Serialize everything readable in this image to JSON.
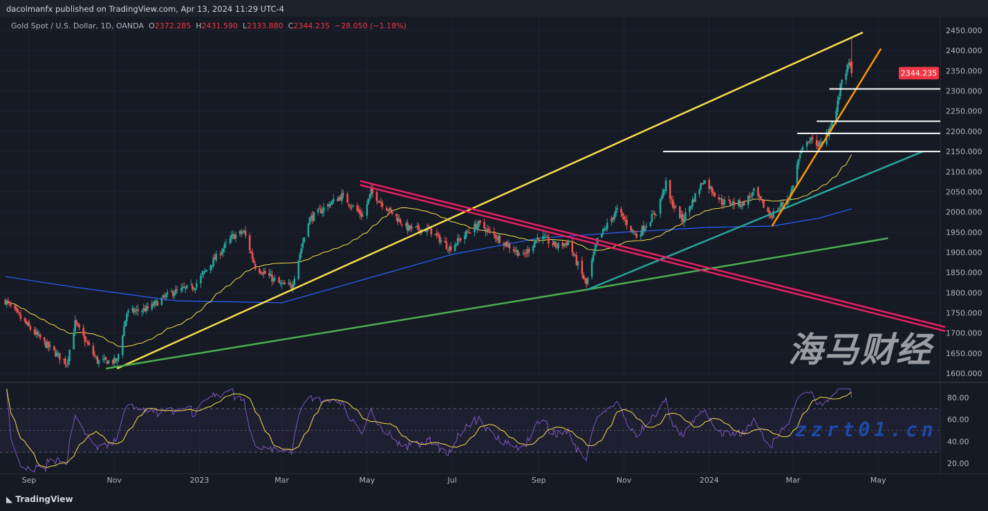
{
  "header": {
    "published": "dacolmanfx published on TradingView.com, Apr 13, 2024 11:29 UTC-4",
    "symbol": "Gold Spot / U.S. Dollar, 1D, OANDA",
    "open_label": "O",
    "open": "2372.285",
    "high_label": "H",
    "high": "2431.590",
    "low_label": "L",
    "low": "2333.880",
    "close_label": "C",
    "close": "2344.235",
    "change": "−28.050 (−1.18%)"
  },
  "footer": {
    "logo": "TradingView"
  },
  "watermark": {
    "line1": "海马财经",
    "line2": "zzrt01.cn"
  },
  "colors": {
    "background": "#161a25",
    "up": "#26a69a",
    "down": "#ef5350",
    "sma_fast": "#f7e04b",
    "sma_slow": "#2962ff",
    "rsi": "#7e57c2",
    "rsi_ma": "#f7e04b",
    "last_price": "#f23645"
  },
  "chart_data": [
    {
      "type": "candlestick",
      "ylim": [
        1580,
        2480
      ],
      "y_ticks": [
        "2450.000",
        "2400.000",
        "2350.000",
        "2300.000",
        "2250.000",
        "2200.000",
        "2150.000",
        "2100.000",
        "2050.000",
        "2000.000",
        "1950.000",
        "1900.000",
        "1850.000",
        "1800.000",
        "1750.000",
        "1700.000",
        "1650.000",
        "1600.000"
      ],
      "x_ticks": [
        {
          "label": "Sep",
          "date": "2022-09-01"
        },
        {
          "label": "Nov",
          "date": "2022-11-01"
        },
        {
          "label": "2023",
          "date": "2023-01-01"
        },
        {
          "label": "Mar",
          "date": "2023-03-01"
        },
        {
          "label": "May",
          "date": "2023-05-01"
        },
        {
          "label": "Jul",
          "date": "2023-07-01"
        },
        {
          "label": "Sep",
          "date": "2023-09-01"
        },
        {
          "label": "Nov",
          "date": "2023-11-01"
        },
        {
          "label": "2024",
          "date": "2024-01-01"
        },
        {
          "label": "Mar",
          "date": "2024-03-01"
        },
        {
          "label": "May",
          "date": "2024-05-01"
        }
      ],
      "last_price_label": "2344.235",
      "close_path": [
        [
          "2022-08-15",
          1780
        ],
        [
          "2022-08-29",
          1725
        ],
        [
          "2022-09-12",
          1675
        ],
        [
          "2022-09-28",
          1625
        ],
        [
          "2022-10-04",
          1725
        ],
        [
          "2022-10-20",
          1630
        ],
        [
          "2022-11-03",
          1630
        ],
        [
          "2022-11-10",
          1750
        ],
        [
          "2022-11-25",
          1760
        ],
        [
          "2022-12-12",
          1800
        ],
        [
          "2022-12-28",
          1815
        ],
        [
          "2023-01-10",
          1875
        ],
        [
          "2023-01-25",
          1940
        ],
        [
          "2023-02-02",
          1950
        ],
        [
          "2023-02-10",
          1865
        ],
        [
          "2023-02-28",
          1820
        ],
        [
          "2023-03-08",
          1815
        ],
        [
          "2023-03-20",
          1980
        ],
        [
          "2023-04-04",
          2020
        ],
        [
          "2023-04-13",
          2040
        ],
        [
          "2023-04-28",
          1990
        ],
        [
          "2023-05-04",
          2050
        ],
        [
          "2023-05-15",
          2010
        ],
        [
          "2023-05-30",
          1960
        ],
        [
          "2023-06-15",
          1955
        ],
        [
          "2023-06-29",
          1910
        ],
        [
          "2023-07-14",
          1955
        ],
        [
          "2023-07-20",
          1970
        ],
        [
          "2023-08-03",
          1935
        ],
        [
          "2023-08-21",
          1890
        ],
        [
          "2023-09-01",
          1940
        ],
        [
          "2023-09-14",
          1915
        ],
        [
          "2023-09-22",
          1925
        ],
        [
          "2023-10-05",
          1820
        ],
        [
          "2023-10-13",
          1930
        ],
        [
          "2023-10-27",
          2005
        ],
        [
          "2023-11-10",
          1940
        ],
        [
          "2023-11-24",
          2000
        ],
        [
          "2023-12-01",
          2070
        ],
        [
          "2023-12-04",
          2030
        ],
        [
          "2023-12-13",
          1980
        ],
        [
          "2023-12-28",
          2080
        ],
        [
          "2024-01-10",
          2025
        ],
        [
          "2024-01-25",
          2020
        ],
        [
          "2024-02-02",
          2050
        ],
        [
          "2024-02-14",
          1990
        ],
        [
          "2024-02-28",
          2040
        ],
        [
          "2024-03-05",
          2130
        ],
        [
          "2024-03-11",
          2180
        ],
        [
          "2024-03-22",
          2165
        ],
        [
          "2024-04-01",
          2250
        ],
        [
          "2024-04-05",
          2330
        ],
        [
          "2024-04-11",
          2370
        ],
        [
          "2024-04-12",
          2344.235
        ]
      ],
      "sma_slow_path": [
        [
          "2022-08-15",
          1840
        ],
        [
          "2022-10-01",
          1815
        ],
        [
          "2022-12-15",
          1780
        ],
        [
          "2023-03-01",
          1775
        ],
        [
          "2023-05-01",
          1835
        ],
        [
          "2023-07-01",
          1895
        ],
        [
          "2023-09-01",
          1935
        ],
        [
          "2023-11-01",
          1950
        ],
        [
          "2024-01-01",
          1962
        ],
        [
          "2024-02-15",
          1965
        ],
        [
          "2024-03-20",
          1985
        ],
        [
          "2024-04-12",
          2008
        ]
      ],
      "trendlines": [
        {
          "color": "#f7e04b",
          "points": [
            [
              "2022-11-03",
              1612
            ],
            [
              "2024-04-20",
              2445
            ]
          ]
        },
        {
          "color": "#4caf50",
          "points": [
            [
              "2022-10-26",
              1612
            ],
            [
              "2023-10-06",
              1808
            ],
            [
              "2024-05-08",
              1935
            ]
          ]
        },
        {
          "color": "#26a69a",
          "points": [
            [
              "2023-10-06",
              1808
            ],
            [
              "2024-06-02",
              2150
            ]
          ]
        },
        {
          "color": "#e91e63",
          "points": [
            [
              "2023-04-26",
              2077
            ],
            [
              "2024-06-18",
              1715
            ]
          ]
        },
        {
          "color": "#e91e63",
          "points": [
            [
              "2023-04-26",
              2067
            ],
            [
              "2024-06-18",
              1705
            ]
          ]
        },
        {
          "color": "#ff9800",
          "points": [
            [
              "2024-02-15",
              1965
            ],
            [
              "2024-05-03",
              2405
            ]
          ]
        }
      ],
      "horizontal_levels": [
        {
          "price": 2305,
          "from": "2024-03-27"
        },
        {
          "price": 2225,
          "from": "2024-03-18"
        },
        {
          "price": 2195,
          "from": "2024-03-04"
        },
        {
          "price": 2150,
          "from": "2023-11-29"
        }
      ]
    },
    {
      "type": "line",
      "title": "",
      "y_ticks": [
        "80.00",
        "60.00",
        "40.00",
        "20.00"
      ],
      "ylim": [
        5,
        95
      ],
      "bands": [
        30,
        70
      ],
      "series": [
        "RSI (14)",
        "RSI moving average"
      ]
    }
  ]
}
